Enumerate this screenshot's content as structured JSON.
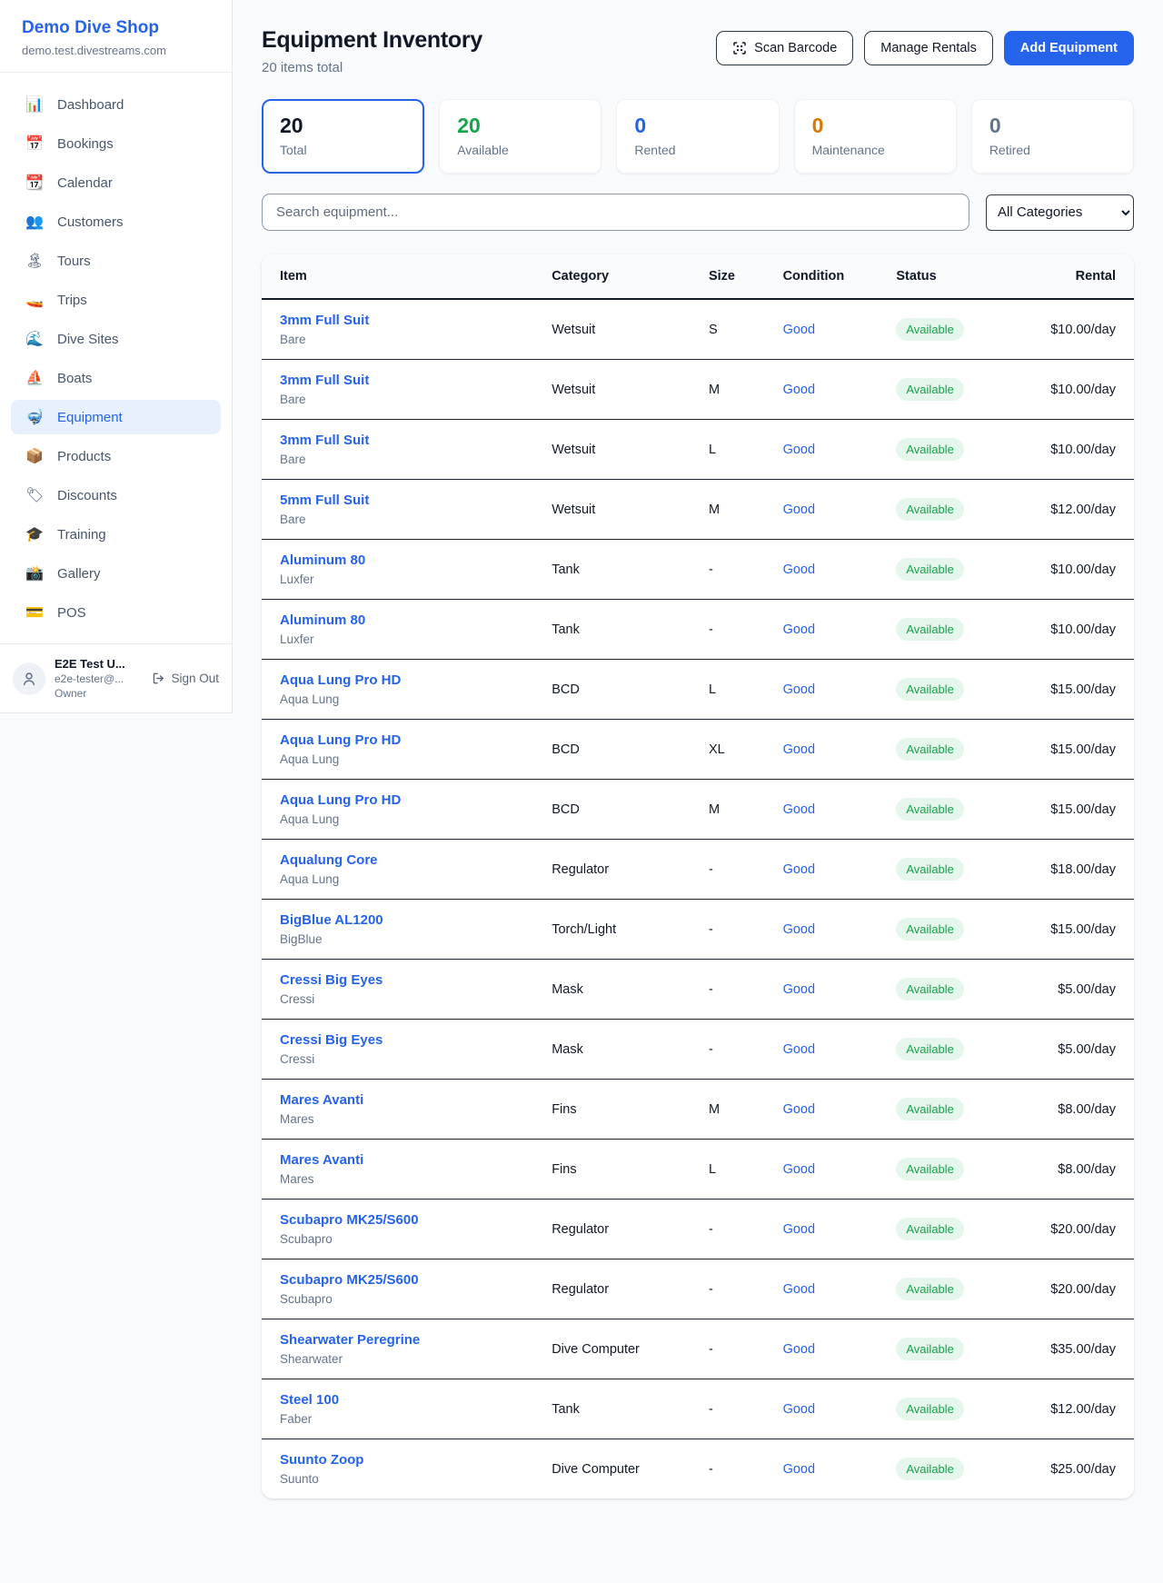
{
  "sidebar": {
    "brand": {
      "name": "Demo Dive Shop",
      "domain": "demo.test.divestreams.com"
    },
    "items": [
      {
        "id": "dashboard",
        "icon": "📊",
        "icon_name": "bar-chart-icon",
        "label": "Dashboard",
        "active": false
      },
      {
        "id": "bookings",
        "icon": "📅",
        "icon_name": "calendar-icon",
        "label": "Bookings",
        "active": false
      },
      {
        "id": "calendar",
        "icon": "📆",
        "icon_name": "tear-calendar-icon",
        "label": "Calendar",
        "active": false
      },
      {
        "id": "customers",
        "icon": "👥",
        "icon_name": "people-icon",
        "label": "Customers",
        "active": false
      },
      {
        "id": "tours",
        "icon": "🏝",
        "icon_name": "island-icon",
        "label": "Tours",
        "active": false
      },
      {
        "id": "trips",
        "icon": "🚤",
        "icon_name": "speedboat-icon",
        "label": "Trips",
        "active": false
      },
      {
        "id": "dive-sites",
        "icon": "🌊",
        "icon_name": "wave-icon",
        "label": "Dive Sites",
        "active": false
      },
      {
        "id": "boats",
        "icon": "⛵",
        "icon_name": "sailboat-icon",
        "label": "Boats",
        "active": false
      },
      {
        "id": "equipment",
        "icon": "🤿",
        "icon_name": "diving-mask-icon",
        "label": "Equipment",
        "active": true
      },
      {
        "id": "products",
        "icon": "📦",
        "icon_name": "package-icon",
        "label": "Products",
        "active": false
      },
      {
        "id": "discounts",
        "icon": "🏷",
        "icon_name": "tag-icon",
        "label": "Discounts",
        "active": false
      },
      {
        "id": "training",
        "icon": "🎓",
        "icon_name": "grad-cap-icon",
        "label": "Training",
        "active": false
      },
      {
        "id": "gallery",
        "icon": "📸",
        "icon_name": "camera-icon",
        "label": "Gallery",
        "active": false
      },
      {
        "id": "pos",
        "icon": "💳",
        "icon_name": "credit-card-icon",
        "label": "POS",
        "active": false
      }
    ],
    "user": {
      "name": "E2E Test U...",
      "email": "e2e-tester@...",
      "role": "Owner",
      "sign_out_label": "Sign Out"
    }
  },
  "header": {
    "title": "Equipment Inventory",
    "subtitle": "20 items total",
    "scan_barcode_label": "Scan Barcode",
    "manage_rentals_label": "Manage Rentals",
    "add_equipment_label": "Add Equipment"
  },
  "stats": [
    {
      "value": "20",
      "label": "Total",
      "color": "#111827",
      "active": true
    },
    {
      "value": "20",
      "label": "Available",
      "color": "#16a34a",
      "active": false
    },
    {
      "value": "0",
      "label": "Rented",
      "color": "#2563eb",
      "active": false
    },
    {
      "value": "0",
      "label": "Maintenance",
      "color": "#d97706",
      "active": false
    },
    {
      "value": "0",
      "label": "Retired",
      "color": "#64748b",
      "active": false
    }
  ],
  "filters": {
    "search_placeholder": "Search equipment...",
    "category_selected": "All Categories"
  },
  "table": {
    "columns": [
      "Item",
      "Category",
      "Size",
      "Condition",
      "Status",
      "Rental"
    ],
    "rows": [
      {
        "name": "3mm Full Suit",
        "brand": "Bare",
        "category": "Wetsuit",
        "size": "S",
        "condition": "Good",
        "status": "Available",
        "rental": "$10.00/day"
      },
      {
        "name": "3mm Full Suit",
        "brand": "Bare",
        "category": "Wetsuit",
        "size": "M",
        "condition": "Good",
        "status": "Available",
        "rental": "$10.00/day"
      },
      {
        "name": "3mm Full Suit",
        "brand": "Bare",
        "category": "Wetsuit",
        "size": "L",
        "condition": "Good",
        "status": "Available",
        "rental": "$10.00/day"
      },
      {
        "name": "5mm Full Suit",
        "brand": "Bare",
        "category": "Wetsuit",
        "size": "M",
        "condition": "Good",
        "status": "Available",
        "rental": "$12.00/day"
      },
      {
        "name": "Aluminum 80",
        "brand": "Luxfer",
        "category": "Tank",
        "size": "-",
        "condition": "Good",
        "status": "Available",
        "rental": "$10.00/day"
      },
      {
        "name": "Aluminum 80",
        "brand": "Luxfer",
        "category": "Tank",
        "size": "-",
        "condition": "Good",
        "status": "Available",
        "rental": "$10.00/day"
      },
      {
        "name": "Aqua Lung Pro HD",
        "brand": "Aqua Lung",
        "category": "BCD",
        "size": "L",
        "condition": "Good",
        "status": "Available",
        "rental": "$15.00/day"
      },
      {
        "name": "Aqua Lung Pro HD",
        "brand": "Aqua Lung",
        "category": "BCD",
        "size": "XL",
        "condition": "Good",
        "status": "Available",
        "rental": "$15.00/day"
      },
      {
        "name": "Aqua Lung Pro HD",
        "brand": "Aqua Lung",
        "category": "BCD",
        "size": "M",
        "condition": "Good",
        "status": "Available",
        "rental": "$15.00/day"
      },
      {
        "name": "Aqualung Core",
        "brand": "Aqua Lung",
        "category": "Regulator",
        "size": "-",
        "condition": "Good",
        "status": "Available",
        "rental": "$18.00/day"
      },
      {
        "name": "BigBlue AL1200",
        "brand": "BigBlue",
        "category": "Torch/Light",
        "size": "-",
        "condition": "Good",
        "status": "Available",
        "rental": "$15.00/day"
      },
      {
        "name": "Cressi Big Eyes",
        "brand": "Cressi",
        "category": "Mask",
        "size": "-",
        "condition": "Good",
        "status": "Available",
        "rental": "$5.00/day"
      },
      {
        "name": "Cressi Big Eyes",
        "brand": "Cressi",
        "category": "Mask",
        "size": "-",
        "condition": "Good",
        "status": "Available",
        "rental": "$5.00/day"
      },
      {
        "name": "Mares Avanti",
        "brand": "Mares",
        "category": "Fins",
        "size": "M",
        "condition": "Good",
        "status": "Available",
        "rental": "$8.00/day"
      },
      {
        "name": "Mares Avanti",
        "brand": "Mares",
        "category": "Fins",
        "size": "L",
        "condition": "Good",
        "status": "Available",
        "rental": "$8.00/day"
      },
      {
        "name": "Scubapro MK25/S600",
        "brand": "Scubapro",
        "category": "Regulator",
        "size": "-",
        "condition": "Good",
        "status": "Available",
        "rental": "$20.00/day"
      },
      {
        "name": "Scubapro MK25/S600",
        "brand": "Scubapro",
        "category": "Regulator",
        "size": "-",
        "condition": "Good",
        "status": "Available",
        "rental": "$20.00/day"
      },
      {
        "name": "Shearwater Peregrine",
        "brand": "Shearwater",
        "category": "Dive Computer",
        "size": "-",
        "condition": "Good",
        "status": "Available",
        "rental": "$35.00/day"
      },
      {
        "name": "Steel 100",
        "brand": "Faber",
        "category": "Tank",
        "size": "-",
        "condition": "Good",
        "status": "Available",
        "rental": "$12.00/day"
      },
      {
        "name": "Suunto Zoop",
        "brand": "Suunto",
        "category": "Dive Computer",
        "size": "-",
        "condition": "Good",
        "status": "Available",
        "rental": "$25.00/day"
      }
    ]
  },
  "colors": {
    "accent_blue": "#2563eb",
    "status_green": "#16a34a",
    "status_badge_bg": "#e5f7ec",
    "maintenance_orange": "#d97706",
    "muted_gray": "#64748b"
  }
}
